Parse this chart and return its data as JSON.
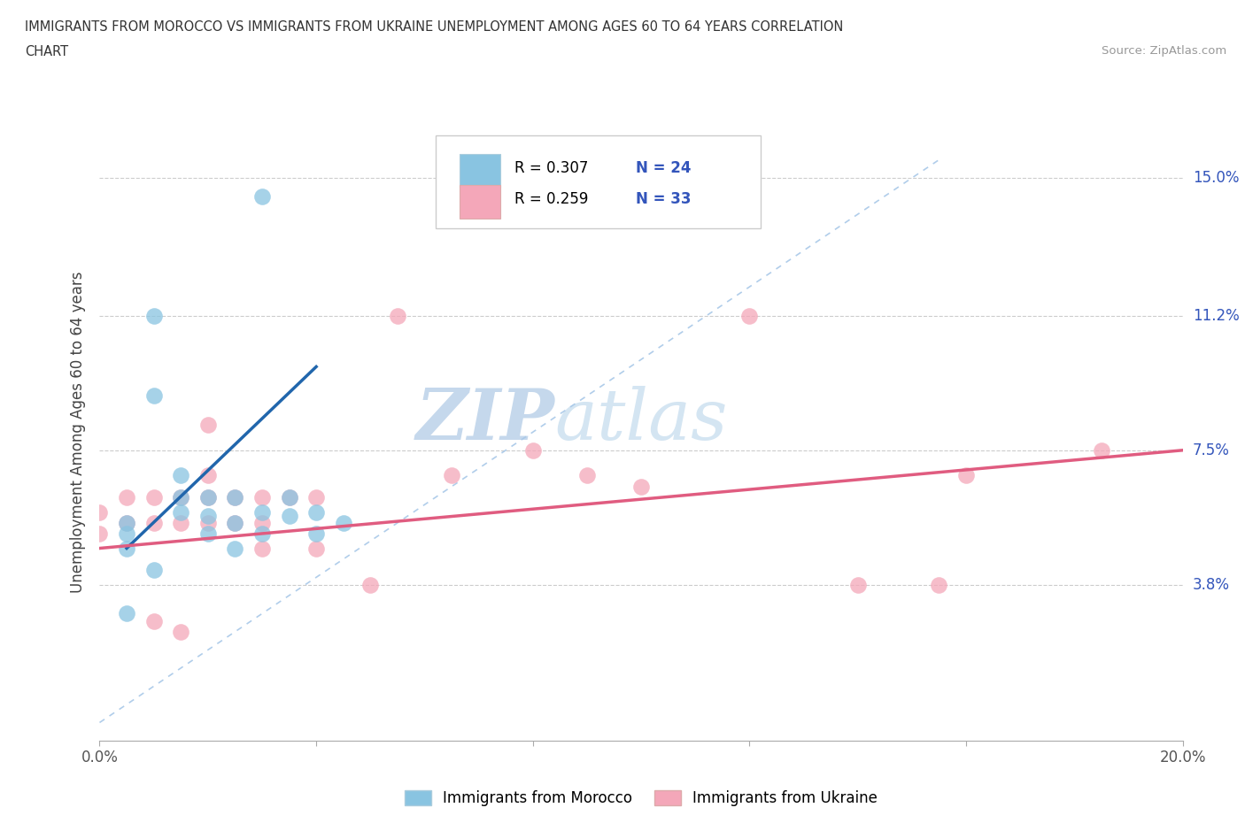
{
  "title_line1": "IMMIGRANTS FROM MOROCCO VS IMMIGRANTS FROM UKRAINE UNEMPLOYMENT AMONG AGES 60 TO 64 YEARS CORRELATION",
  "title_line2": "CHART",
  "source": "Source: ZipAtlas.com",
  "ylabel": "Unemployment Among Ages 60 to 64 years",
  "morocco_color": "#89c4e1",
  "ukraine_color": "#f4a7b9",
  "morocco_line_color": "#2166ac",
  "ukraine_line_color": "#e05c80",
  "diagonal_color": "#a8c8e8",
  "morocco_R": 0.307,
  "morocco_N": 24,
  "ukraine_R": 0.259,
  "ukraine_N": 33,
  "xlim": [
    0.0,
    0.2
  ],
  "ylim": [
    -0.005,
    0.165
  ],
  "xticks": [
    0.0,
    0.04,
    0.08,
    0.12,
    0.16,
    0.2
  ],
  "xtick_labels": [
    "0.0%",
    "",
    "",
    "",
    "",
    "20.0%"
  ],
  "ytick_vals": [
    0.0,
    0.038,
    0.075,
    0.112,
    0.15
  ],
  "ytick_labels": [
    "",
    "3.8%",
    "7.5%",
    "11.2%",
    "15.0%"
  ],
  "background_color": "#ffffff",
  "watermark_zip": "ZIP",
  "watermark_atlas": "atlas",
  "morocco_x": [
    0.005,
    0.01,
    0.01,
    0.015,
    0.015,
    0.015,
    0.02,
    0.02,
    0.02,
    0.025,
    0.025,
    0.025,
    0.03,
    0.03,
    0.035,
    0.035,
    0.04,
    0.04,
    0.045,
    0.005,
    0.005,
    0.005,
    0.01,
    0.03
  ],
  "morocco_y": [
    0.055,
    0.112,
    0.09,
    0.068,
    0.062,
    0.058,
    0.062,
    0.057,
    0.052,
    0.062,
    0.055,
    0.048,
    0.058,
    0.052,
    0.062,
    0.057,
    0.058,
    0.052,
    0.055,
    0.052,
    0.048,
    0.03,
    0.042,
    0.145
  ],
  "ukraine_x": [
    0.0,
    0.0,
    0.005,
    0.005,
    0.01,
    0.01,
    0.015,
    0.015,
    0.02,
    0.02,
    0.02,
    0.025,
    0.025,
    0.03,
    0.03,
    0.03,
    0.035,
    0.04,
    0.04,
    0.05,
    0.055,
    0.065,
    0.08,
    0.09,
    0.1,
    0.12,
    0.14,
    0.155,
    0.16,
    0.185,
    0.02,
    0.01,
    0.015
  ],
  "ukraine_y": [
    0.058,
    0.052,
    0.062,
    0.055,
    0.062,
    0.055,
    0.062,
    0.055,
    0.068,
    0.062,
    0.055,
    0.062,
    0.055,
    0.062,
    0.055,
    0.048,
    0.062,
    0.062,
    0.048,
    0.038,
    0.112,
    0.068,
    0.075,
    0.068,
    0.065,
    0.112,
    0.038,
    0.038,
    0.068,
    0.075,
    0.082,
    0.028,
    0.025
  ],
  "morocco_trend_x": [
    0.005,
    0.04
  ],
  "morocco_trend_y": [
    0.048,
    0.098
  ],
  "ukraine_trend_x": [
    0.0,
    0.2
  ],
  "ukraine_trend_y": [
    0.048,
    0.075
  ]
}
